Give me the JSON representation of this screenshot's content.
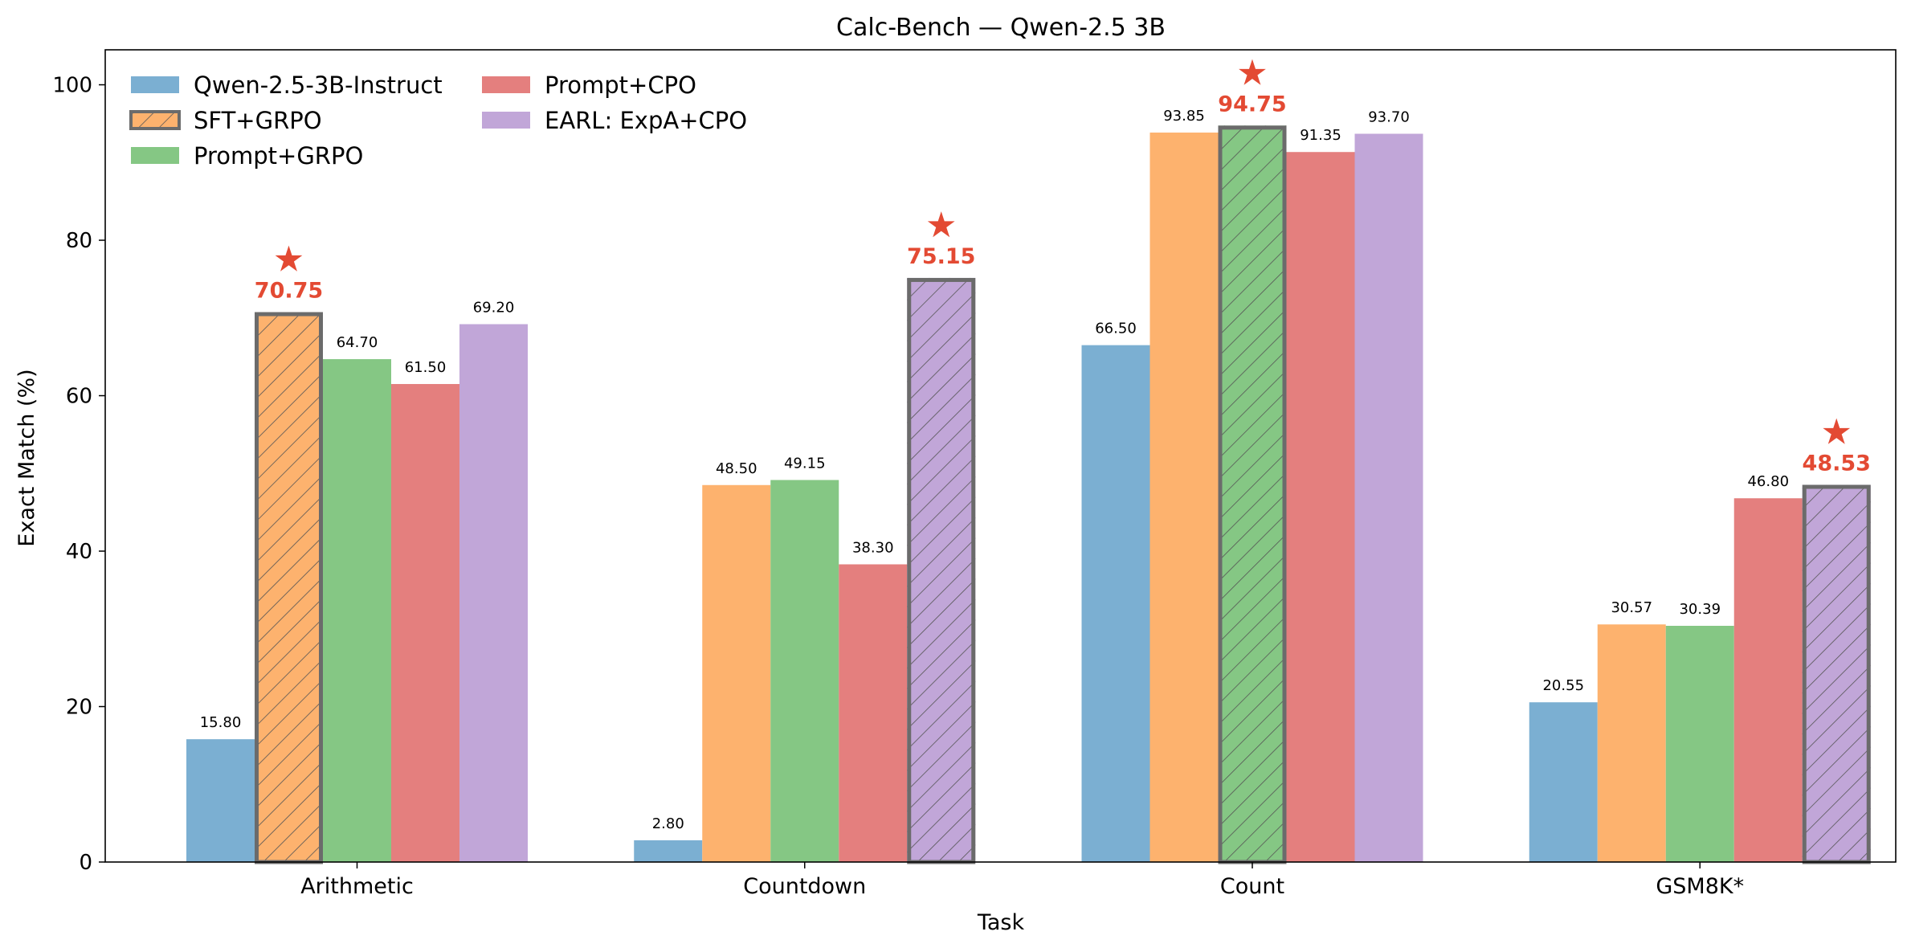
{
  "chart_data": {
    "type": "bar",
    "title": "Calc-Bench — Qwen-2.5 3B",
    "xlabel": "Task",
    "ylabel": "Exact Match (%)",
    "ylim": [
      0,
      104.5
    ],
    "yticks": [
      0,
      20,
      40,
      60,
      80,
      100
    ],
    "grid": false,
    "legend_position": "top-left",
    "categories": [
      "Arithmetic",
      "Countdown",
      "Count",
      "GSM8K*"
    ],
    "series": [
      {
        "name": "Qwen-2.5-3B-Instruct",
        "color": "#7bafd2",
        "values": [
          15.8,
          2.8,
          66.5,
          20.55
        ],
        "labels": [
          "15.80",
          "2.80",
          "66.50",
          "20.55"
        ]
      },
      {
        "name": "SFT+GRPO",
        "color": "#fdb26e",
        "values": [
          70.75,
          48.5,
          93.85,
          30.57
        ],
        "labels": [
          "70.75",
          "48.50",
          "93.85",
          "30.57"
        ]
      },
      {
        "name": "Prompt+GRPO",
        "color": "#85c784",
        "values": [
          64.7,
          49.15,
          94.75,
          30.39
        ],
        "labels": [
          "64.70",
          "49.15",
          "94.75",
          "30.39"
        ]
      },
      {
        "name": "Prompt+CPO",
        "color": "#e47f7e",
        "values": [
          61.5,
          38.3,
          91.35,
          46.8
        ],
        "labels": [
          "61.50",
          "38.30",
          "91.35",
          "46.80"
        ]
      },
      {
        "name": "EARL: ExpA+CPO",
        "color": "#c1a6d8",
        "values": [
          69.2,
          75.15,
          93.7,
          48.53
        ],
        "labels": [
          "69.20",
          "75.15",
          "93.70",
          "48.53"
        ]
      }
    ],
    "best": [
      {
        "category": 0,
        "series": 1
      },
      {
        "category": 1,
        "series": 4
      },
      {
        "category": 2,
        "series": 2
      },
      {
        "category": 3,
        "series": 4
      }
    ],
    "highlight_color": "#e34a33",
    "highlight_edge_color": "#6b6b6b",
    "best_marker": "★"
  }
}
